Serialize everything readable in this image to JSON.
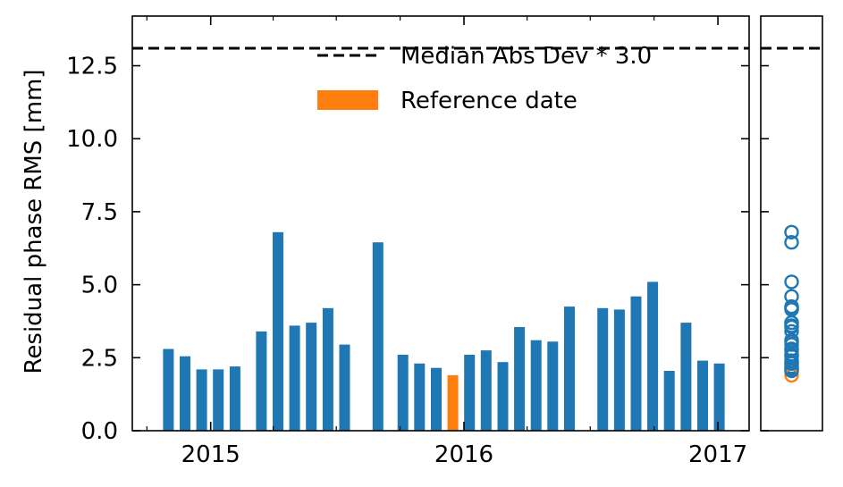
{
  "chart_data": {
    "type": "bar",
    "ylabel": "Residual phase RMS [mm]",
    "ylim": [
      0,
      14.2
    ],
    "xlim": [
      "2014-09-10",
      "2017-02-15"
    ],
    "yticks": [
      0.0,
      2.5,
      5.0,
      7.5,
      10.0,
      12.5
    ],
    "ytick_labels": [
      "0.0",
      "2.5",
      "5.0",
      "7.5",
      "10.0",
      "12.5"
    ],
    "xticks": [
      "2015-01-01",
      "2016-01-01",
      "2017-01-01"
    ],
    "xtick_labels": [
      "2015",
      "2016",
      "2017"
    ],
    "grid": false,
    "legend_position": "top-right",
    "legend": [
      {
        "label": "Median Abs Dev * 3.0",
        "kind": "dashed-line",
        "color": "#000000"
      },
      {
        "label": "Reference date",
        "kind": "patch",
        "color": "#ff7f0e"
      }
    ],
    "threshold": {
      "label": "Median Abs Dev * 3.0",
      "value": 13.1,
      "color": "#000000",
      "style": "dashed"
    },
    "bar_color": "#1f77b4",
    "reference_color": "#ff7f0e",
    "bars": [
      {
        "date": "2014-11-01",
        "value": 2.8
      },
      {
        "date": "2014-11-25",
        "value": 2.55
      },
      {
        "date": "2014-12-19",
        "value": 2.1
      },
      {
        "date": "2015-01-12",
        "value": 2.1
      },
      {
        "date": "2015-02-05",
        "value": 2.2
      },
      {
        "date": "2015-03-15",
        "value": 3.4
      },
      {
        "date": "2015-04-08",
        "value": 6.8
      },
      {
        "date": "2015-05-02",
        "value": 3.6
      },
      {
        "date": "2015-05-26",
        "value": 3.7
      },
      {
        "date": "2015-06-19",
        "value": 4.2
      },
      {
        "date": "2015-07-13",
        "value": 2.95
      },
      {
        "date": "2015-08-30",
        "value": 6.45
      },
      {
        "date": "2015-10-05",
        "value": 2.6
      },
      {
        "date": "2015-10-29",
        "value": 2.3
      },
      {
        "date": "2015-11-22",
        "value": 2.15
      },
      {
        "date": "2015-12-16",
        "value": 1.9,
        "reference": true
      },
      {
        "date": "2016-01-09",
        "value": 2.6
      },
      {
        "date": "2016-02-02",
        "value": 2.75
      },
      {
        "date": "2016-02-26",
        "value": 2.35
      },
      {
        "date": "2016-03-21",
        "value": 3.55
      },
      {
        "date": "2016-04-14",
        "value": 3.1
      },
      {
        "date": "2016-05-08",
        "value": 3.05
      },
      {
        "date": "2016-06-01",
        "value": 4.25
      },
      {
        "date": "2016-07-19",
        "value": 4.2
      },
      {
        "date": "2016-08-12",
        "value": 4.15
      },
      {
        "date": "2016-09-05",
        "value": 4.6
      },
      {
        "date": "2016-09-29",
        "value": 5.1
      },
      {
        "date": "2016-10-23",
        "value": 2.05
      },
      {
        "date": "2016-11-16",
        "value": 3.7
      },
      {
        "date": "2016-12-10",
        "value": 2.4
      },
      {
        "date": "2017-01-03",
        "value": 2.3
      }
    ]
  }
}
